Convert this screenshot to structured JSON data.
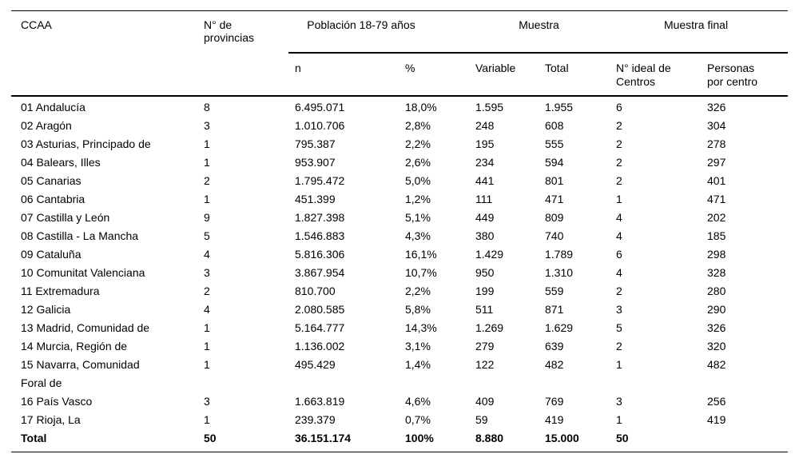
{
  "header": {
    "ccaa": "CCAA",
    "provinces": "N° de\nprovincias",
    "population_group": "Población 18-79 años",
    "sample_group": "Muestra",
    "final_sample_group": "Muestra final",
    "sub": {
      "n": "n",
      "pct": "%",
      "variable": "Variable",
      "total": "Total",
      "ideal_centers": "N° ideal de\nCentros",
      "persons_per_center": "Personas\npor centro"
    }
  },
  "table": {
    "rows": [
      [
        "01 Andalucía",
        "8",
        "6.495.071",
        "18,0%",
        "1.595",
        "1.955",
        "6",
        "326"
      ],
      [
        "02 Aragón",
        "3",
        "1.010.706",
        "2,8%",
        "248",
        "608",
        "2",
        "304"
      ],
      [
        "03 Asturias, Principado de",
        "1",
        "795.387",
        "2,2%",
        "195",
        "555",
        "2",
        "278"
      ],
      [
        "04 Balears, Illes",
        "1",
        "953.907",
        "2,6%",
        "234",
        "594",
        "2",
        "297"
      ],
      [
        "05 Canarias",
        "2",
        "1.795.472",
        "5,0%",
        "441",
        "801",
        "2",
        "401"
      ],
      [
        "06 Cantabria",
        "1",
        "451.399",
        "1,2%",
        "111",
        "471",
        "1",
        "471"
      ],
      [
        "07 Castilla y León",
        "9",
        "1.827.398",
        "5,1%",
        "449",
        "809",
        "4",
        "202"
      ],
      [
        "08 Castilla - La Mancha",
        "5",
        "1.546.883",
        "4,3%",
        "380",
        "740",
        "4",
        "185"
      ],
      [
        "09 Cataluña",
        "4",
        "5.816.306",
        "16,1%",
        "1.429",
        "1.789",
        "6",
        "298"
      ],
      [
        "10 Comunitat Valenciana",
        "3",
        "3.867.954",
        "10,7%",
        "950",
        "1.310",
        "4",
        "328"
      ],
      [
        "11 Extremadura",
        "2",
        "810.700",
        "2,2%",
        "199",
        "559",
        "2",
        "280"
      ],
      [
        "12 Galicia",
        "4",
        "2.080.585",
        "5,8%",
        "511",
        "871",
        "3",
        "290"
      ],
      [
        "13 Madrid, Comunidad de",
        "1",
        "5.164.777",
        "14,3%",
        "1.269",
        "1.629",
        "5",
        "326"
      ],
      [
        "14 Murcia, Región de",
        "1",
        "1.136.002",
        "3,1%",
        "279",
        "639",
        "2",
        "320"
      ],
      [
        "15 Navarra, Comunidad\nForal de",
        "1",
        "495.429",
        "1,4%",
        "122",
        "482",
        "1",
        "482"
      ],
      [
        "16 País Vasco",
        "3",
        "1.663.819",
        "4,6%",
        "409",
        "769",
        "3",
        "256"
      ],
      [
        "17 Rioja, La",
        "1",
        "239.379",
        "0,7%",
        "59",
        "419",
        "1",
        "419"
      ]
    ],
    "total_row": [
      "Total",
      "50",
      "36.151.174",
      "100%",
      "8.880",
      "15.000",
      "50",
      ""
    ]
  }
}
